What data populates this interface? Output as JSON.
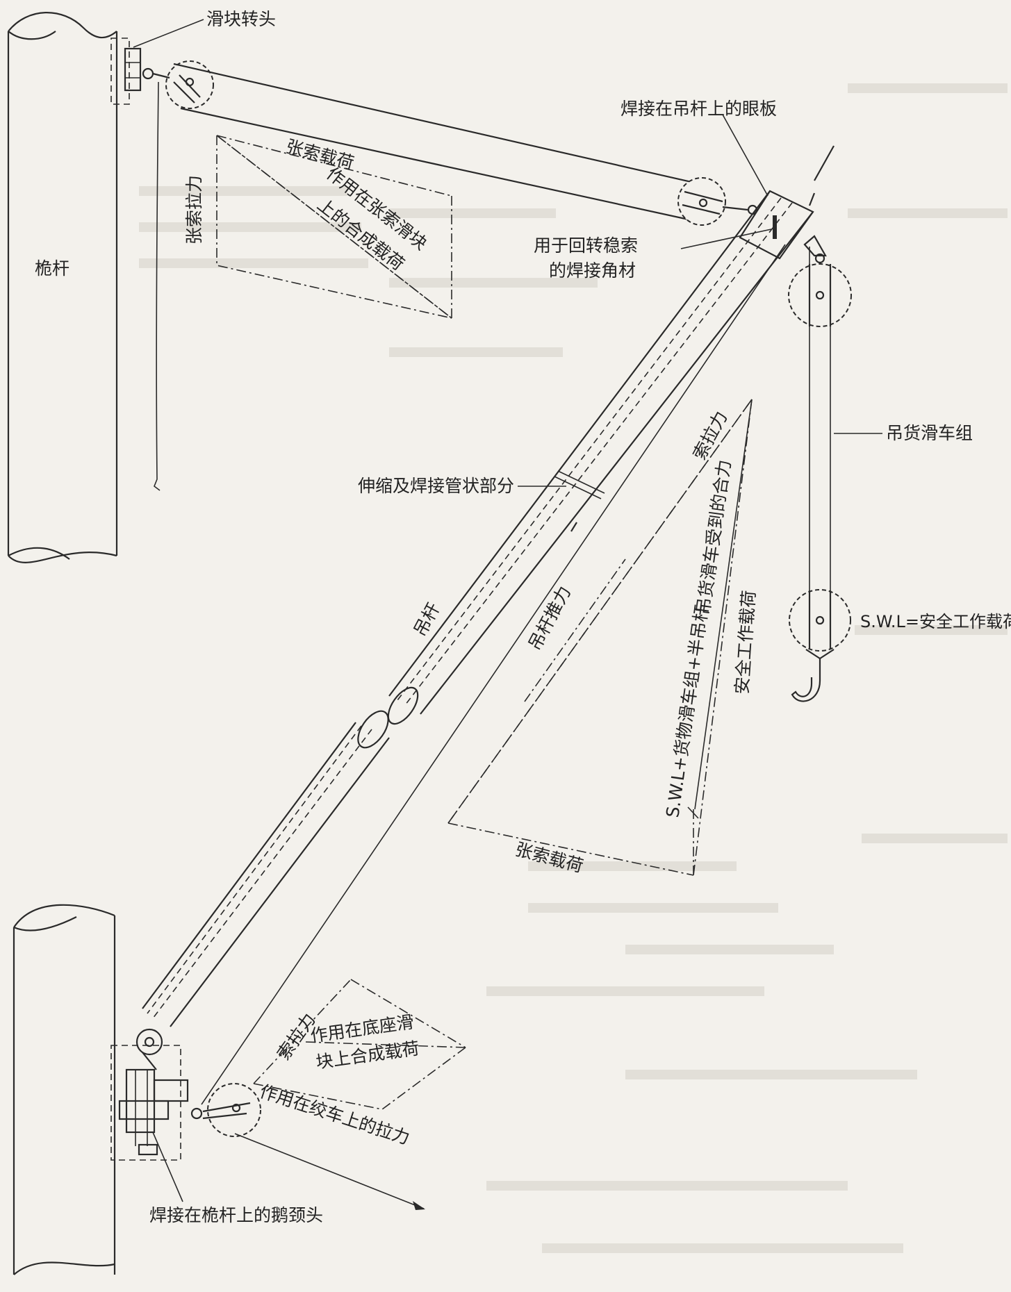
{
  "labels": {
    "mast": "桅杆",
    "slide_swivel": "滑块转头",
    "eye_plate": "焊接在吊杆上的眼板",
    "vang_angle": "用于回转稳索",
    "vang_angle_2": "的焊接角材",
    "cargo_block": "吊货滑车组",
    "swl": "S.W.L=安全工作载荷",
    "telescopic": "伸缩及焊接管状部分",
    "gooseneck": "焊接在桅杆上的鹅颈头"
  },
  "top_triangle": {
    "side_tension": "张索拉力",
    "side_load": "张索载荷",
    "resultant_1": "作用在张索滑块",
    "resultant_2": "上的合成载荷"
  },
  "boom": {
    "boom": "吊杆",
    "thrust": "吊杆推力"
  },
  "big_triangle": {
    "fall_tension": "索拉力",
    "resultant_block": "吊货滑车受到的合力",
    "swl": "安全工作载荷",
    "combined": "S.W.L+货物滑车组+半吊杆",
    "topping_load": "张索载荷"
  },
  "bottom_triangle": {
    "fall_tension": "索拉力",
    "resultant_1": "作用在底座滑",
    "resultant_2": "块上合成载荷",
    "winch_pull": "作用在绞车上的拉力"
  },
  "colors": {
    "ink": "#2a2a2a",
    "paper": "#f3f1ec"
  }
}
